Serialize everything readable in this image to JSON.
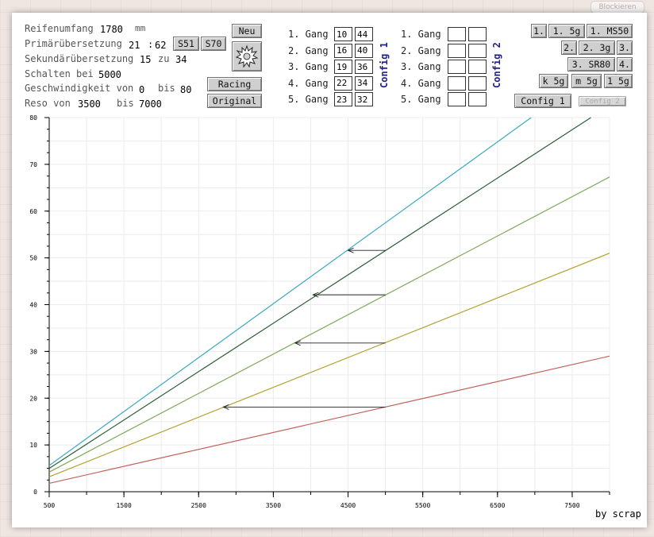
{
  "top_button": "Blockieren",
  "params": {
    "reifenumfang_label": "Reifenumfang",
    "reifenumfang_value": "1780",
    "reifenumfang_unit": "mm",
    "primaer_label": "Primärübersetzung",
    "primaer_a": "21",
    "primaer_sep": ":",
    "primaer_b": "62",
    "sekundaer_label": "Sekundärübersetzung",
    "sekundaer_a": "15",
    "sekundaer_zu": "zu",
    "sekundaer_b": "34",
    "schalten_label": "Schalten bei",
    "schalten_value": "5000",
    "geschw_label": "Geschwindigkeit von",
    "geschw_from": "0",
    "geschw_bis": "bis",
    "geschw_to": "80",
    "reso_label": "Reso von",
    "reso_from": "3500",
    "reso_bis": "bis",
    "reso_to": "7000"
  },
  "buttons": {
    "s51": "S51",
    "s70": "S70",
    "neu": "Neu",
    "racing": "Racing",
    "original": "Original"
  },
  "config1": {
    "title": "Config 1",
    "gears": [
      {
        "label": "1. Gang",
        "a": "10",
        "b": "44"
      },
      {
        "label": "2. Gang",
        "a": "16",
        "b": "40"
      },
      {
        "label": "3. Gang",
        "a": "19",
        "b": "36"
      },
      {
        "label": "4. Gang",
        "a": "22",
        "b": "34"
      },
      {
        "label": "5. Gang",
        "a": "23",
        "b": "32"
      }
    ]
  },
  "config2": {
    "title": "Config 2",
    "gears": [
      {
        "label": "1. Gang",
        "a": "",
        "b": ""
      },
      {
        "label": "2. Gang",
        "a": "",
        "b": ""
      },
      {
        "label": "3. Gang",
        "a": "",
        "b": ""
      },
      {
        "label": "4. Gang",
        "a": "",
        "b": ""
      },
      {
        "label": "5. Gang",
        "a": "",
        "b": ""
      }
    ]
  },
  "presets": {
    "b1": "1.",
    "b2": "1. 5g",
    "b3": "1. MS50",
    "b4": "2.",
    "b5": "2. 3g",
    "b6": "3.",
    "b7": "3. SR80",
    "b8": "4.",
    "b9": "k 5g",
    "b10": "m 5g",
    "b11": "1 5g",
    "config1": "Config 1",
    "config2": "Config 2"
  },
  "credit": "by scrap",
  "chart_data": {
    "type": "line",
    "xlim": [
      500,
      8000
    ],
    "ylim": [
      0,
      80
    ],
    "x_ticks": [
      500,
      1500,
      2500,
      3500,
      4500,
      5500,
      6500,
      7500
    ],
    "x_tick_labels": [
      "500",
      "1500",
      "2500",
      "3500",
      "4500",
      "5500",
      "6500",
      "7500"
    ],
    "y_ticks": [
      0,
      10,
      20,
      30,
      40,
      50,
      60,
      70,
      80
    ],
    "y_tick_labels": [
      "0",
      "10",
      "20",
      "30",
      "40",
      "50",
      "60",
      "70",
      "80"
    ],
    "grid": true,
    "series": [
      {
        "color": "#c0625a",
        "points": [
          [
            500,
            1.8
          ],
          [
            8000,
            29.0
          ]
        ]
      },
      {
        "color": "#b5a02f",
        "points": [
          [
            500,
            3.2
          ],
          [
            8000,
            51.0
          ]
        ]
      },
      {
        "color": "#7fa85a",
        "points": [
          [
            500,
            4.2
          ],
          [
            8000,
            67.3
          ]
        ]
      },
      {
        "color": "#2f5e38",
        "points": [
          [
            500,
            5.0
          ],
          [
            7750,
            80.0
          ]
        ]
      },
      {
        "color": "#3aa8c4",
        "points": [
          [
            500,
            5.6
          ],
          [
            6950,
            80.0
          ]
        ]
      }
    ],
    "shift_arrows": [
      {
        "from": [
          5000,
          18.1
        ],
        "to": [
          2830,
          18.1
        ]
      },
      {
        "from": [
          5000,
          31.8
        ],
        "to": [
          3790,
          31.8
        ]
      },
      {
        "from": [
          5000,
          42.1
        ],
        "to": [
          4030,
          42.1
        ]
      },
      {
        "from": [
          5000,
          51.6
        ],
        "to": [
          4500,
          51.6
        ]
      }
    ]
  }
}
